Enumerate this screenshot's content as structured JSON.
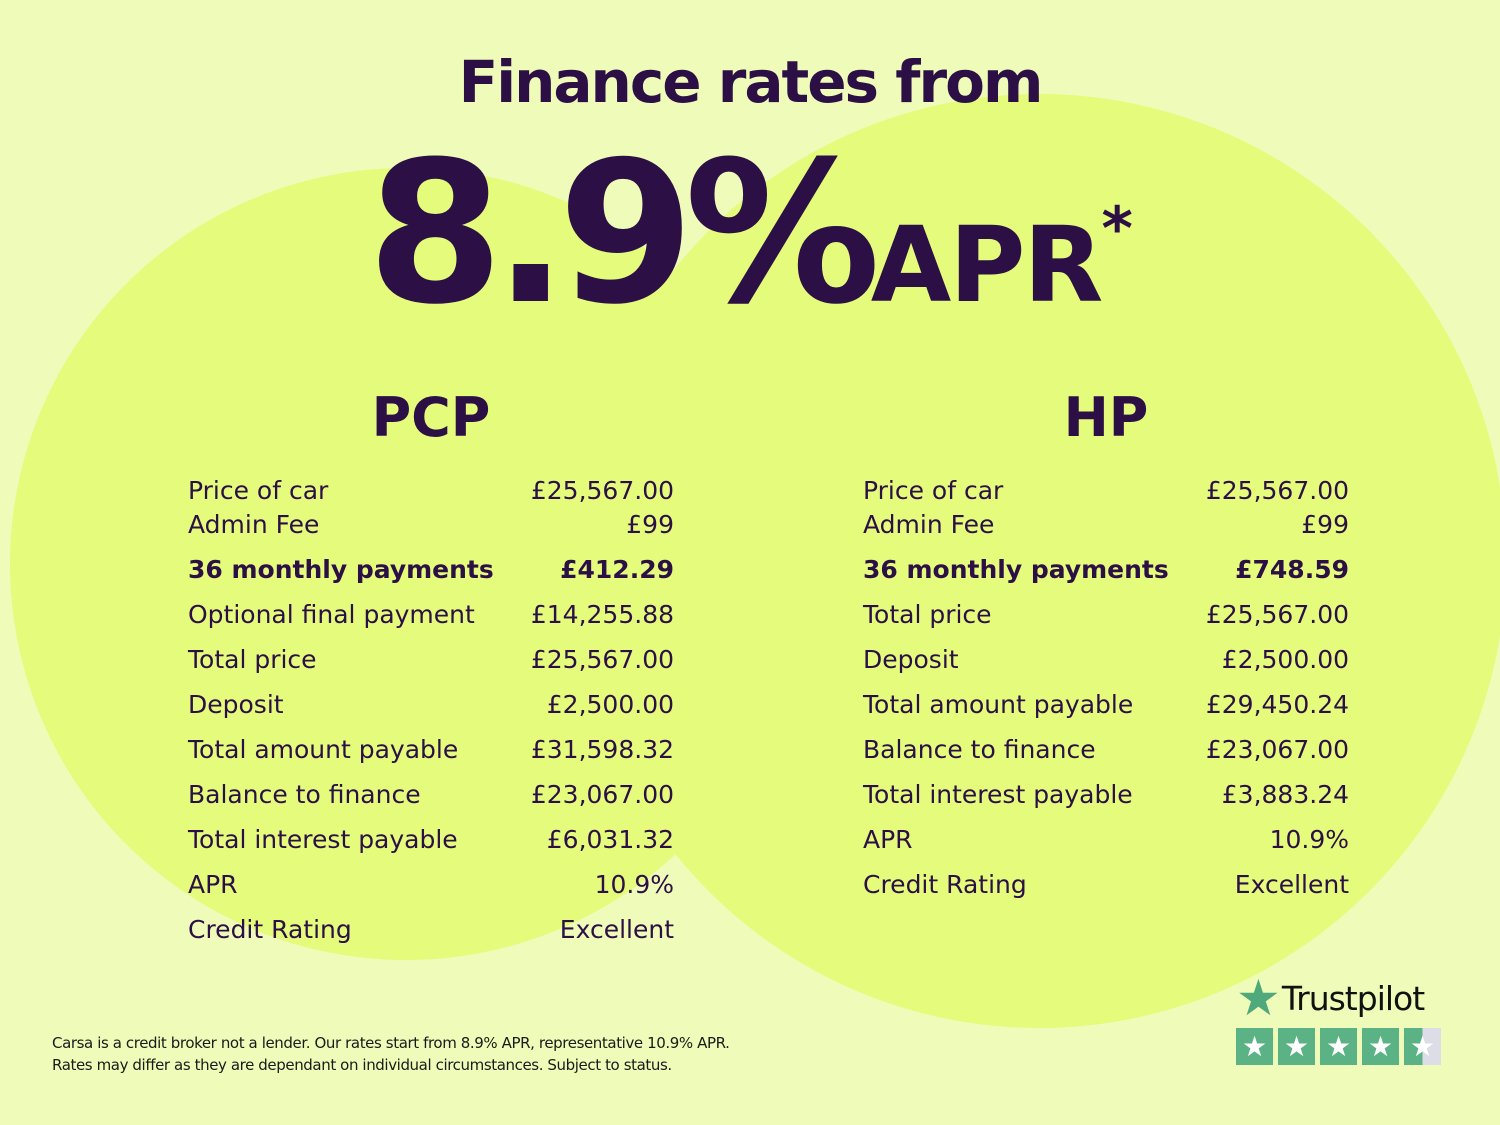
{
  "headline": "Finance rates from",
  "rate": "8.9%",
  "rate_suffix": "APR",
  "asterisk": "*",
  "colors": {
    "background": "#effbb8",
    "circle": "#e4fb7c",
    "text": "#2b0f45",
    "trustpilot": "#5bb385"
  },
  "pcp": {
    "title": "PCP",
    "rows": [
      [
        "Price of car",
        "£25,567.00"
      ],
      [
        "Admin Fee",
        "£99"
      ],
      [
        "36 monthly payments",
        "£412.29"
      ],
      [
        "Optional final payment",
        "£14,255.88"
      ],
      [
        "Total price",
        "£25,567.00"
      ],
      [
        "Deposit",
        "£2,500.00"
      ],
      [
        "Total amount payable",
        "£31,598.32"
      ],
      [
        "Balance to finance",
        "£23,067.00"
      ],
      [
        "Total interest payable",
        "£6,031.32"
      ],
      [
        "APR",
        "10.9%"
      ],
      [
        "Credit Rating",
        "Excellent"
      ]
    ]
  },
  "hp": {
    "title": "HP",
    "rows": [
      [
        "Price of car",
        "£25,567.00"
      ],
      [
        "Admin Fee",
        "£99"
      ],
      [
        "36 monthly payments",
        "£748.59"
      ],
      [
        "Total price",
        "£25,567.00"
      ],
      [
        "Deposit",
        "£2,500.00"
      ],
      [
        "Total amount payable",
        "£29,450.24"
      ],
      [
        "Balance to finance",
        "£23,067.00"
      ],
      [
        "Total interest payable",
        "£3,883.24"
      ],
      [
        "APR",
        "10.9%"
      ],
      [
        "Credit Rating",
        "Excellent"
      ]
    ]
  },
  "footer": [
    "Carsa is a credit broker not a lender. Our rates start from 8.9% APR, representative 10.9% APR.",
    "Rates may differ as they are dependant on individual circumstances. Subject to status."
  ],
  "trustpilot": {
    "name": "Trustpilot",
    "rating_stars": 4.5,
    "icon": "star-icon"
  }
}
